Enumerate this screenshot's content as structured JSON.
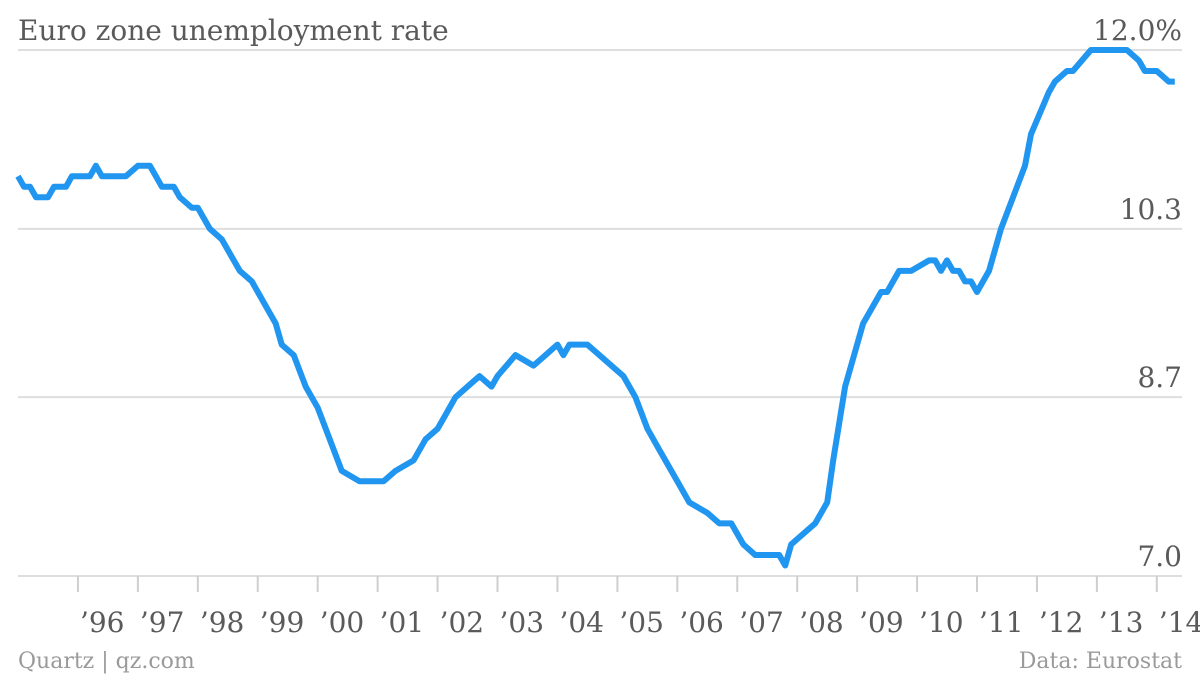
{
  "footer": {
    "source_left": "Quartz | qz.com",
    "source_right": "Data: Eurostat"
  },
  "chart_data": {
    "type": "line",
    "title": "Euro zone unemployment rate",
    "xlabel": "",
    "ylabel": "",
    "ylim": [
      7.0,
      12.0
    ],
    "yticks": [
      7.0,
      8.7,
      10.3,
      12.0
    ],
    "ytick_labels": [
      "7.0",
      "8.7",
      "10.3",
      "12.0%"
    ],
    "xlim": [
      1995.0,
      2014.42
    ],
    "xticks": [
      1996,
      1997,
      1998,
      1999,
      2000,
      2001,
      2002,
      2003,
      2004,
      2005,
      2006,
      2007,
      2008,
      2009,
      2010,
      2011,
      2012,
      2013,
      2014
    ],
    "xtick_labels": [
      "’96",
      "’97",
      "’98",
      "’99",
      "’00",
      "’01",
      "’02",
      "’03",
      "’04",
      "’05",
      "’06",
      "’07",
      "’08",
      "’09",
      "’10",
      "’11",
      "’12",
      "’13",
      "’14"
    ],
    "grid": true,
    "line_color": "#2196f0",
    "series": [
      {
        "x": [
          1995.0,
          1995.1,
          1995.2,
          1995.3,
          1995.5,
          1995.6,
          1995.8,
          1995.9,
          1996.2,
          1996.3,
          1996.4,
          1996.6,
          1996.8,
          1997.0,
          1997.2,
          1997.3,
          1997.4,
          1997.6,
          1997.7,
          1997.9,
          1998.0,
          1998.2,
          1998.4,
          1998.6,
          1998.7,
          1998.9,
          1999.0,
          1999.2,
          1999.3,
          1999.4,
          1999.6,
          1999.8,
          2000.0,
          2000.2,
          2000.4,
          2000.7,
          2000.9,
          2001.1,
          2001.3,
          2001.6,
          2001.8,
          2002.0,
          2002.1,
          2002.3,
          2002.5,
          2002.7,
          2002.9,
          2003.0,
          2003.3,
          2003.6,
          2003.8,
          2004.0,
          2004.1,
          2004.2,
          2004.3,
          2004.5,
          2004.7,
          2004.9,
          2005.1,
          2005.3,
          2005.5,
          2005.7,
          2005.8,
          2006.0,
          2006.2,
          2006.5,
          2006.7,
          2006.9,
          2007.1,
          2007.3,
          2007.5,
          2007.7,
          2007.8,
          2007.9,
          2008.1,
          2008.3,
          2008.5,
          2008.6,
          2008.8,
          2009.0,
          2009.1,
          2009.4,
          2009.5,
          2009.6,
          2009.7,
          2009.9,
          2010.2,
          2010.3,
          2010.4,
          2010.5,
          2010.6,
          2010.7,
          2010.8,
          2010.9,
          2011.0,
          2011.2,
          2011.4,
          2011.6,
          2011.8,
          2011.9,
          2012.2,
          2012.3,
          2012.5,
          2012.6,
          2012.9,
          2013.1,
          2013.3,
          2013.5,
          2013.7,
          2013.8,
          2013.9,
          2014.0,
          2014.2,
          2014.3
        ],
        "values": [
          10.8,
          10.7,
          10.7,
          10.6,
          10.6,
          10.7,
          10.7,
          10.8,
          10.8,
          10.9,
          10.8,
          10.8,
          10.8,
          10.9,
          10.9,
          10.8,
          10.7,
          10.7,
          10.6,
          10.5,
          10.5,
          10.3,
          10.2,
          10.0,
          9.9,
          9.8,
          9.7,
          9.5,
          9.4,
          9.2,
          9.1,
          8.8,
          8.6,
          8.3,
          8.0,
          7.9,
          7.9,
          7.9,
          8.0,
          8.1,
          8.3,
          8.4,
          8.5,
          8.7,
          8.8,
          8.9,
          8.8,
          8.9,
          9.1,
          9.0,
          9.1,
          9.2,
          9.1,
          9.2,
          9.2,
          9.2,
          9.1,
          9.0,
          8.9,
          8.7,
          8.4,
          8.2,
          8.1,
          7.9,
          7.7,
          7.6,
          7.5,
          7.5,
          7.3,
          7.2,
          7.2,
          7.2,
          7.1,
          7.3,
          7.4,
          7.5,
          7.7,
          8.1,
          8.8,
          9.2,
          9.4,
          9.7,
          9.7,
          9.8,
          9.9,
          9.9,
          10.0,
          10.0,
          9.9,
          10.0,
          9.9,
          9.9,
          9.8,
          9.8,
          9.7,
          9.9,
          10.3,
          10.6,
          10.9,
          11.2,
          11.6,
          11.7,
          11.8,
          11.8,
          12.0,
          12.0,
          12.0,
          12.0,
          11.9,
          11.8,
          11.8,
          11.8,
          11.7,
          11.7
        ]
      }
    ]
  }
}
